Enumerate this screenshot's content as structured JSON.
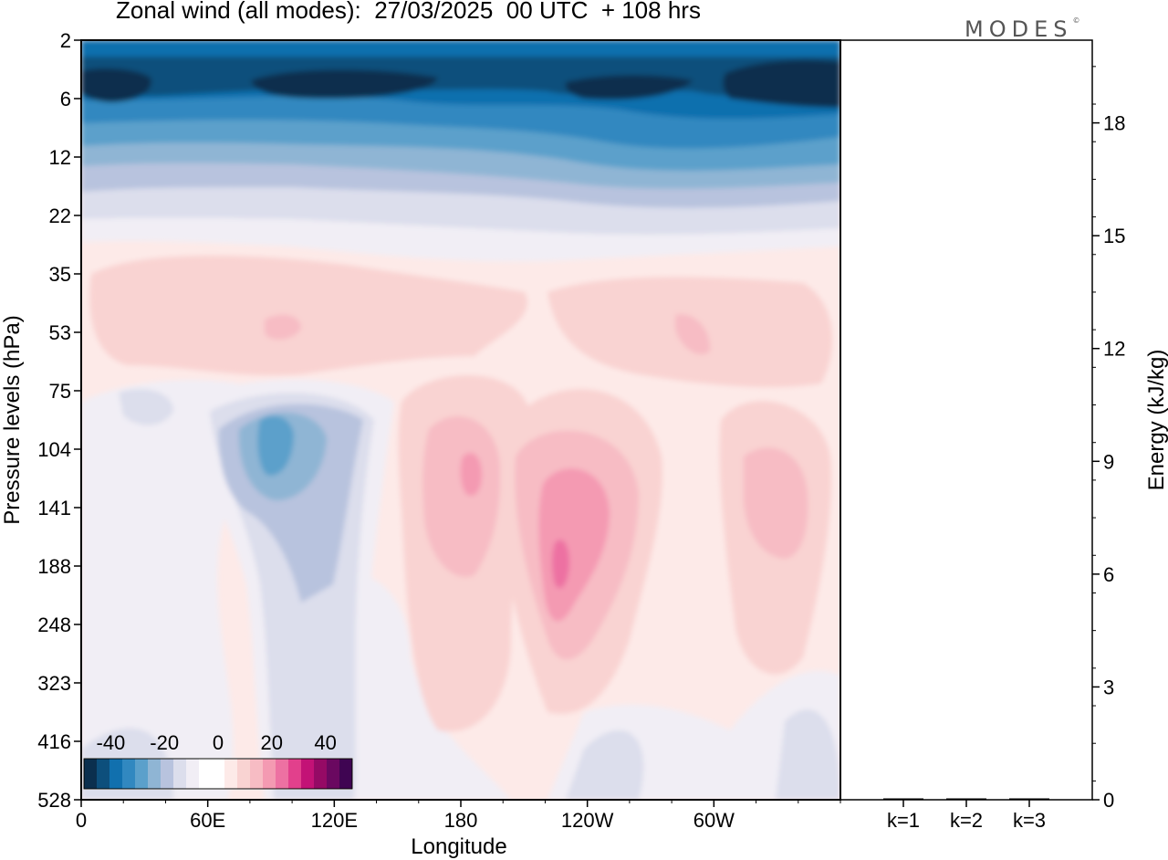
{
  "header": {
    "title": "Zonal wind (all modes):  27/03/2025  00 UTC  + 108 hrs",
    "brand": "MODES",
    "brand_mark": "©"
  },
  "chart_data": [
    {
      "type": "heatmap",
      "title": "Zonal wind (all modes):  27/03/2025  00 UTC  + 108 hrs",
      "xlabel": "Longitude",
      "ylabel": "Pressure levels (hPa)",
      "x_ticks": [
        "0",
        "60E",
        "120E",
        "180",
        "120W",
        "60W"
      ],
      "y_ticks": [
        "2",
        "6",
        "12",
        "22",
        "35",
        "53",
        "75",
        "104",
        "141",
        "188",
        "248",
        "323",
        "416",
        "528"
      ],
      "y_reversed": true,
      "colorbar": {
        "tick_labels": [
          "-40",
          "-20",
          "0",
          "20",
          "40"
        ],
        "range": [
          -50,
          50
        ],
        "step": 5,
        "colors": [
          "#0b2f4e",
          "#0d4f7c",
          "#1170ae",
          "#3188c0",
          "#5ba0cb",
          "#8fb5d4",
          "#b8c3de",
          "#dcdeec",
          "#f1eef5",
          "#ffffff",
          "#ffffff",
          "#fdeae8",
          "#f9d3d2",
          "#f7bcc4",
          "#f49ab2",
          "#ed71a2",
          "#e2408c",
          "#c31276",
          "#950a65",
          "#6a0860",
          "#3f0552"
        ]
      },
      "features": [
        {
          "name": "upper easterly jet",
          "lon_range": [
            0,
            360
          ],
          "p_range": [
            2,
            14
          ],
          "value": -42
        },
        {
          "name": "easterly core (80E-110E)",
          "lon": 95,
          "p": 100,
          "value": -22
        },
        {
          "name": "westerly core (near 180)",
          "lon": 183,
          "p": 110,
          "value": 16
        },
        {
          "name": "westerly core (near 120W)",
          "lon": 242,
          "p": 165,
          "value": 22
        },
        {
          "name": "westerly core (near 40W)",
          "lon": 318,
          "p": 140,
          "value": 12
        }
      ],
      "grid": false
    },
    {
      "type": "bar",
      "categories": [
        "k=1",
        "k=2",
        "k=3"
      ],
      "values": [
        0.02,
        0.02,
        0.01
      ],
      "ylabel": "Energy (kJ/kg)",
      "y_ticks": [
        "0",
        "3",
        "6",
        "9",
        "12",
        "15",
        "18"
      ],
      "ylim": [
        0,
        20.2
      ]
    }
  ]
}
